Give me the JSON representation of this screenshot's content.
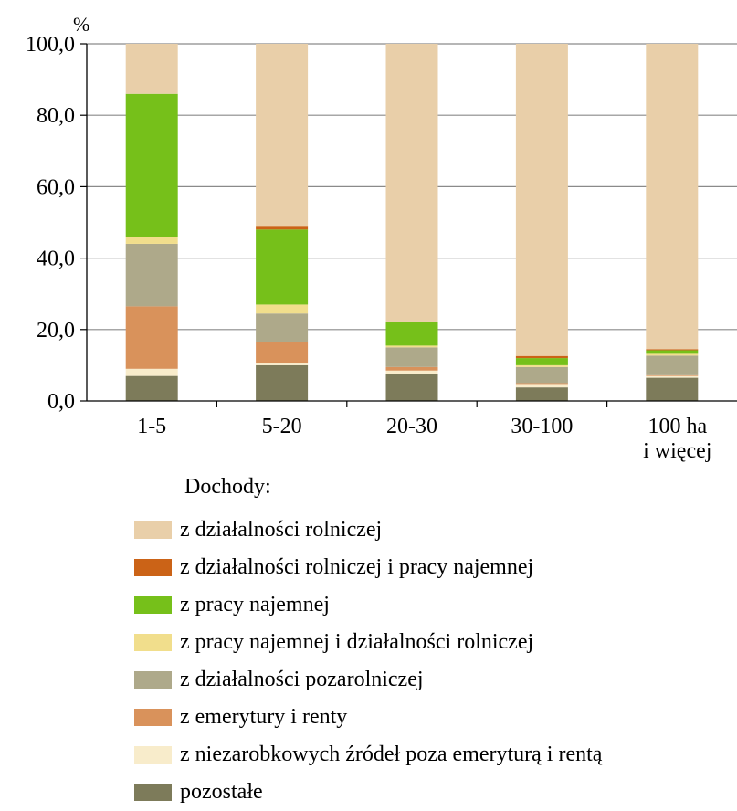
{
  "chart_data": {
    "type": "bar",
    "stacked": true,
    "ylabel": "%",
    "ylim": [
      0,
      100
    ],
    "yticks": [
      "0,0",
      "20,0",
      "40,0",
      "60,0",
      "80,0",
      "100,0"
    ],
    "grid": true,
    "categories": [
      [
        "1-5"
      ],
      [
        "5-20"
      ],
      [
        "20-30"
      ],
      [
        "30-100"
      ],
      [
        "100 ha",
        "i więcej"
      ]
    ],
    "legend_title": "Dochody:",
    "legend_position": "bottom",
    "series": [
      {
        "name": "pozostałe",
        "color": "#7d7b5a",
        "values": [
          7.0,
          10.0,
          7.5,
          3.8,
          6.5
        ]
      },
      {
        "name": "z niezarobkowych źródeł poza emeryturą i rentą",
        "color": "#f8eccb",
        "values": [
          2.0,
          0.5,
          1.0,
          0.7,
          0.5
        ]
      },
      {
        "name": "z emerytury i renty",
        "color": "#d9925b",
        "values": [
          17.5,
          6.0,
          1.0,
          0.5,
          0.2
        ]
      },
      {
        "name": "z działalności pozarolniczej",
        "color": "#aea98a",
        "values": [
          17.5,
          8.0,
          5.5,
          4.5,
          5.5
        ]
      },
      {
        "name": "z pracy najemnej i działalności rolniczej",
        "color": "#f1de8c",
        "values": [
          2.0,
          2.5,
          0.5,
          0.5,
          0.5
        ]
      },
      {
        "name": "z pracy najemnej",
        "color": "#76c01a",
        "values": [
          40.0,
          21.0,
          6.5,
          2.0,
          1.0
        ]
      },
      {
        "name": "z działalności rolniczej i pracy najemnej",
        "color": "#cb6317",
        "values": [
          0.0,
          0.8,
          0.0,
          0.6,
          0.3
        ]
      },
      {
        "name": "z działalności rolniczej",
        "color": "#e9cfa9",
        "values": [
          14.0,
          51.2,
          78.0,
          87.4,
          85.5
        ]
      }
    ],
    "legend_order": [
      7,
      6,
      5,
      4,
      3,
      2,
      1,
      0
    ]
  }
}
